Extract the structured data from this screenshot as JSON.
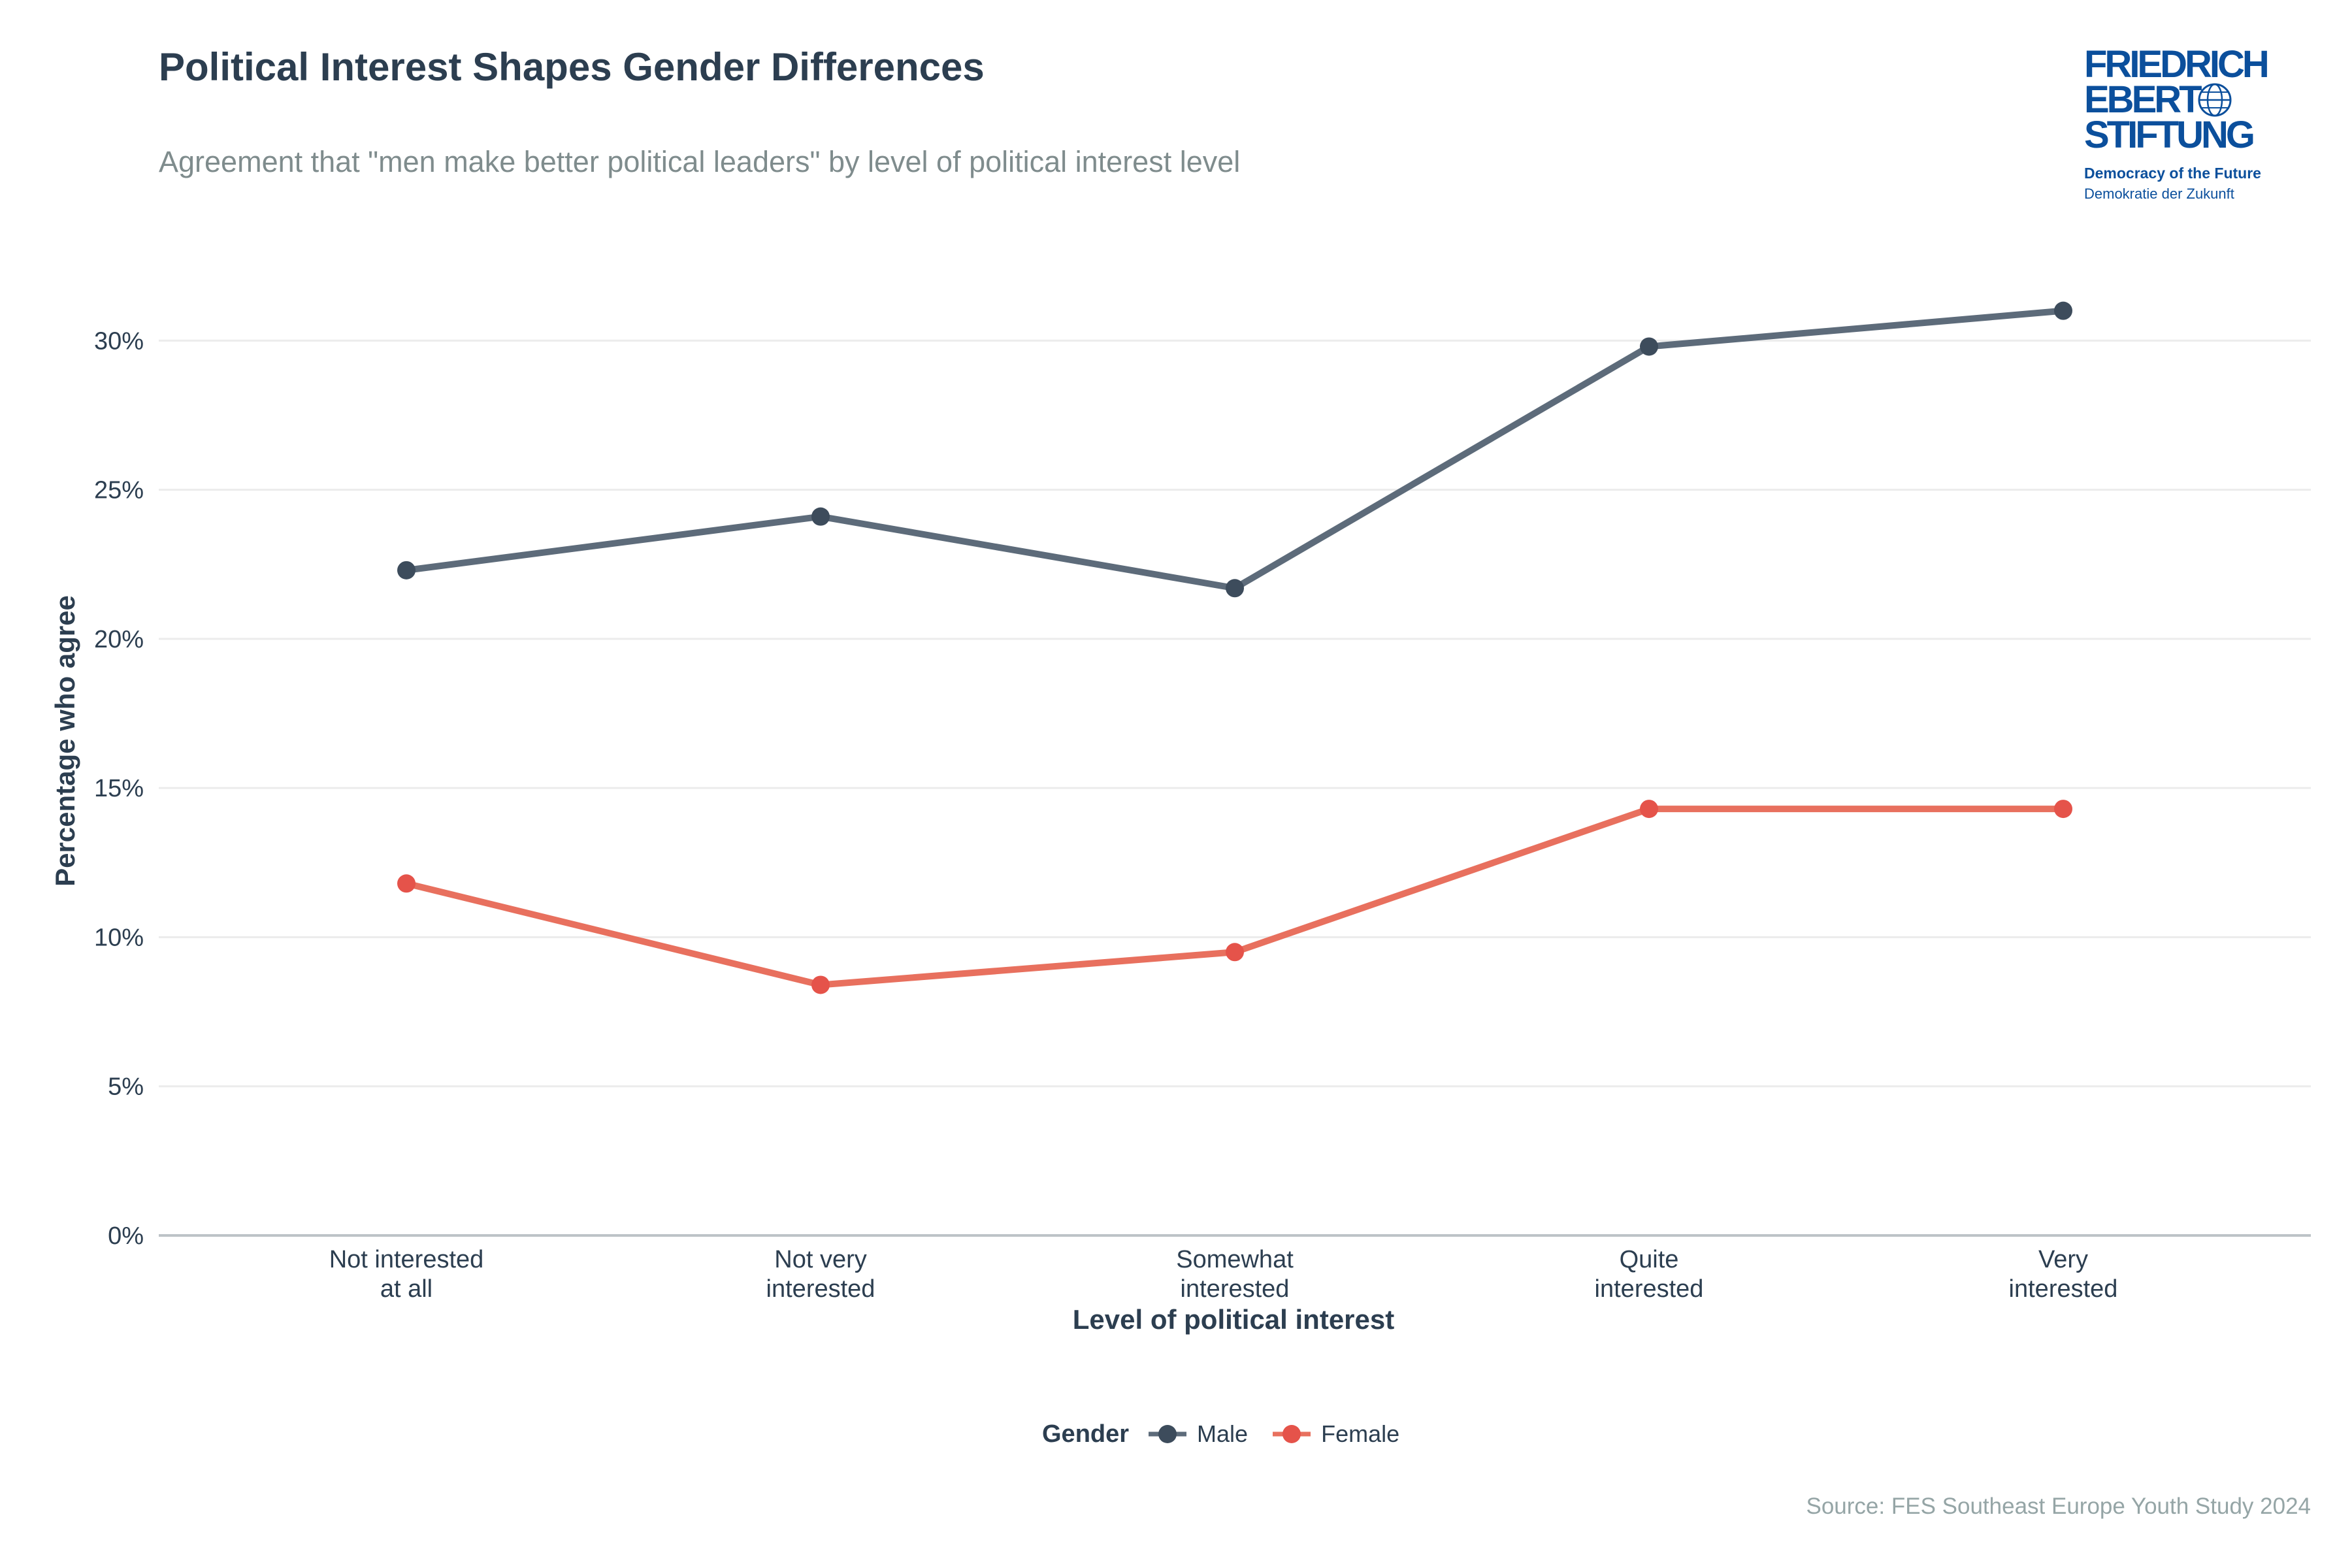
{
  "title": "Political Interest Shapes Gender Differences",
  "subtitle": "Agreement that \"men make better political leaders\" by level of political interest level",
  "logo": {
    "line1": "FRIEDRICH",
    "line2": "EBERT",
    "line3": "STIFTUNG",
    "tagline_en": "Democracy of the Future",
    "tagline_de": "Demokratie der Zukunft"
  },
  "source": "Source: FES Southeast Europe Youth Study 2024",
  "colors": {
    "male": "#5d6b7a",
    "male_point": "#3d4c5c",
    "female": "#e8705e",
    "female_point": "#e5534a",
    "grid": "#ececec",
    "axis": "#bdc3c7",
    "text": "#2c3e50"
  },
  "chart_data": {
    "type": "line",
    "title": "Political Interest Shapes Gender Differences",
    "xlabel": "Level of political interest",
    "ylabel": "Percentage who agree",
    "categories": [
      [
        "Not interested",
        "at all"
      ],
      [
        "Not very",
        "interested"
      ],
      [
        "Somewhat",
        "interested"
      ],
      [
        "Quite",
        "interested"
      ],
      [
        "Very",
        "interested"
      ]
    ],
    "ylim": [
      0,
      32
    ],
    "yticks": [
      0,
      5,
      10,
      15,
      20,
      25,
      30
    ],
    "ytick_labels": [
      "0%",
      "5%",
      "10%",
      "15%",
      "20%",
      "25%",
      "30%"
    ],
    "grid": true,
    "legend_title": "Gender",
    "legend_position": "bottom",
    "series": [
      {
        "name": "Male",
        "values": [
          22.3,
          24.1,
          21.7,
          29.8,
          31.0
        ]
      },
      {
        "name": "Female",
        "values": [
          11.8,
          8.4,
          9.5,
          14.3,
          14.3
        ]
      }
    ]
  }
}
